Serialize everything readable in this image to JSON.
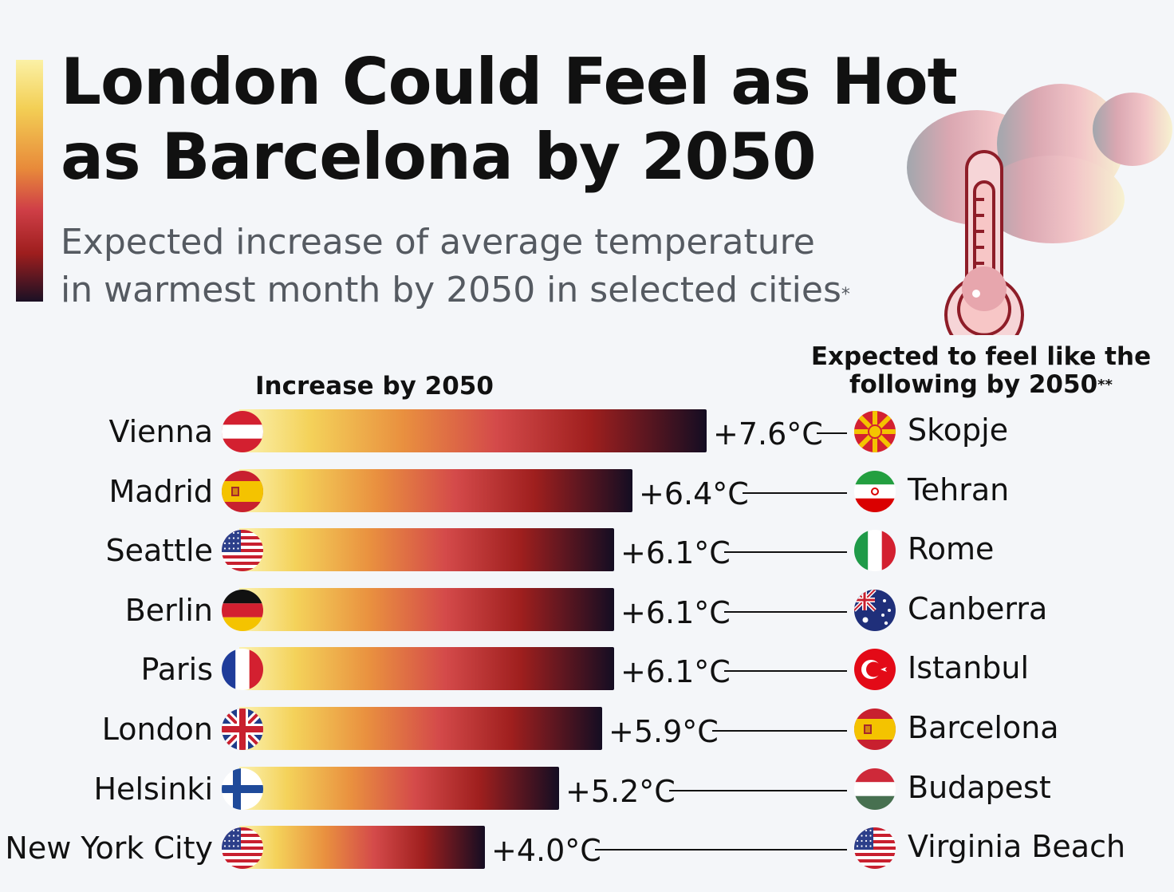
{
  "header": {
    "title": "London Could Feel as Hot\nas Barcelona by 2050",
    "subtitle": "Expected increase of average temperature\nin warmest month by 2050 in selected cities",
    "subtitle_footnote_mark": "*"
  },
  "colors": {
    "background": "#f4f6f9",
    "text": "#111111",
    "subtitle": "#555a61",
    "gradient": [
      "#fbf2b2",
      "#f4d25a",
      "#e9903f",
      "#d44a4a",
      "#9f1f1e",
      "#140d22"
    ]
  },
  "chart_data": {
    "type": "bar",
    "orientation": "horizontal",
    "left_column_label": "Increase by 2050",
    "right_column_label": "Expected to feel like the\nfollowing by 2050",
    "right_column_footnote_mark": "**",
    "unit": "°C",
    "xlim": [
      0,
      7.6
    ],
    "categories": [
      "Vienna",
      "Madrid",
      "Seattle",
      "Berlin",
      "Paris",
      "London",
      "Helsinki",
      "New York City"
    ],
    "values": [
      7.6,
      6.4,
      6.1,
      6.1,
      6.1,
      5.9,
      5.2,
      4.0
    ],
    "value_labels": [
      "+7.6°C",
      "+6.4°C",
      "+6.1°C",
      "+6.1°C",
      "+6.1°C",
      "+5.9°C",
      "+5.2°C",
      "+4.0°C"
    ],
    "city_flags": [
      "austria",
      "spain",
      "usa",
      "germany",
      "france",
      "uk",
      "finland",
      "usa"
    ],
    "comparisons": [
      "Skopje",
      "Tehran",
      "Rome",
      "Canberra",
      "Istanbul",
      "Barcelona",
      "Budapest",
      "Virginia Beach"
    ],
    "comparison_flags": [
      "north-macedonia",
      "iran",
      "italy",
      "australia",
      "turkey",
      "spain",
      "hungary",
      "usa"
    ]
  }
}
